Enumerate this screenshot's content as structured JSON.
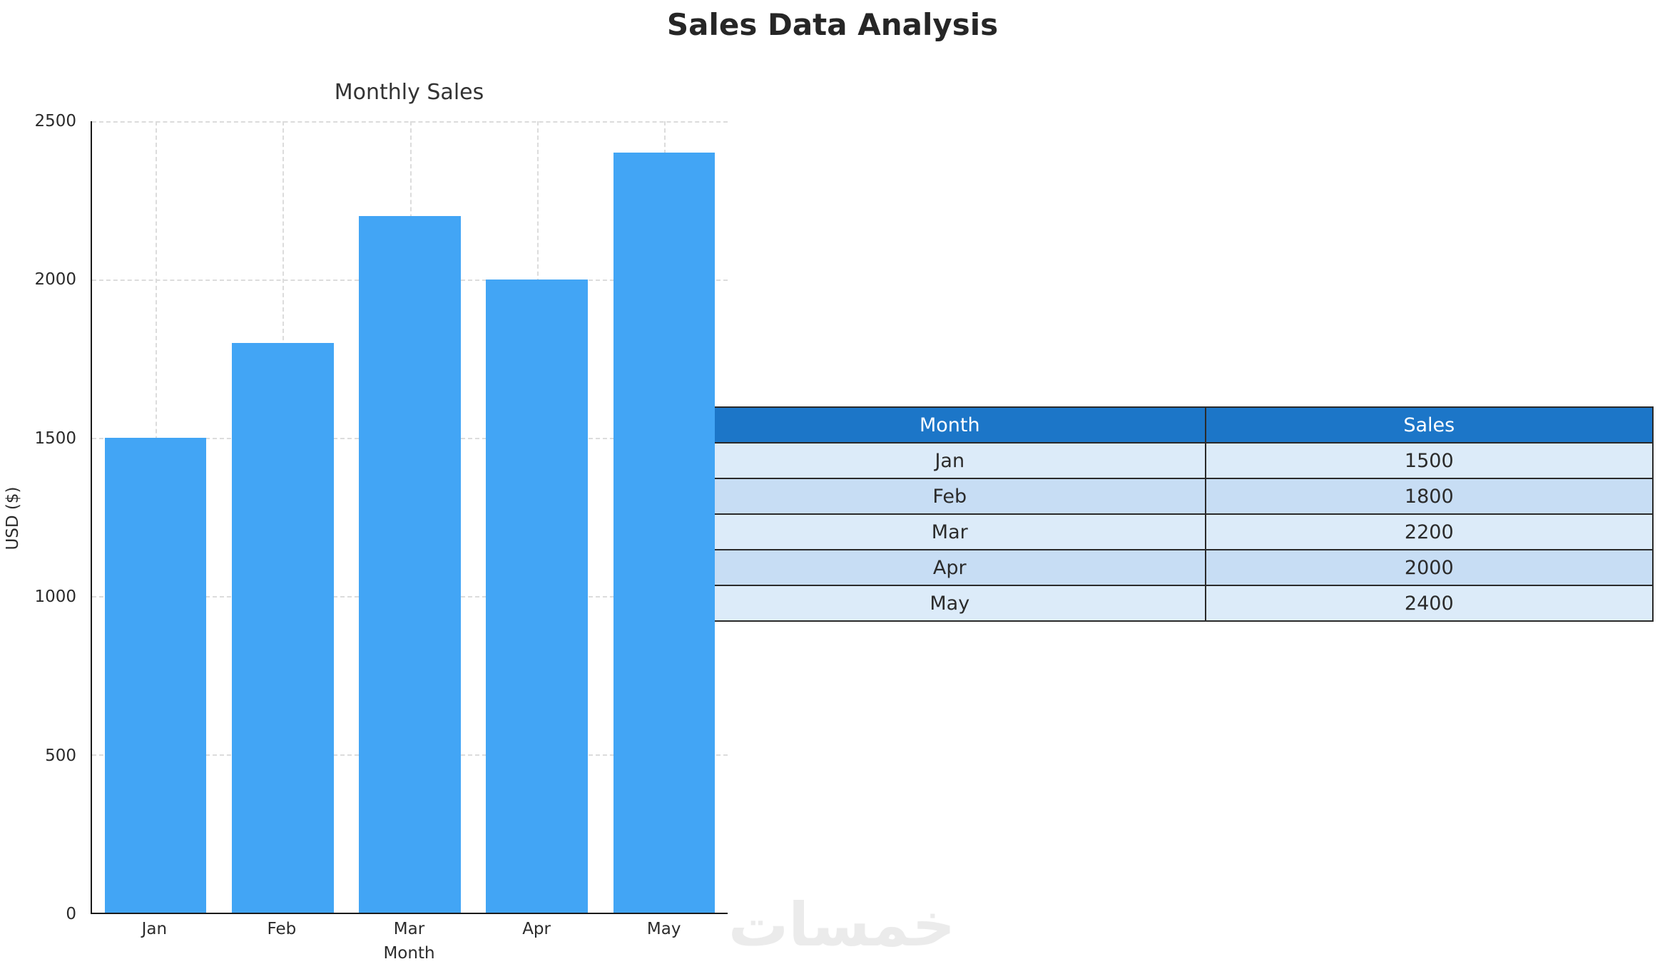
{
  "page": {
    "title": "Sales Data Analysis",
    "watermark": "خمسات"
  },
  "chart_data": {
    "type": "bar",
    "title": "Monthly Sales",
    "categories": [
      "Jan",
      "Feb",
      "Mar",
      "Apr",
      "May"
    ],
    "values": [
      1500,
      1800,
      2200,
      2000,
      2400
    ],
    "xlabel": "Month",
    "ylabel": "USD ($)",
    "ylim": [
      0,
      2500
    ],
    "yticks": [
      0,
      500,
      1000,
      1500,
      2000,
      2500
    ],
    "bar_color": "#42a5f5",
    "grid": true,
    "grid_style": "dashed",
    "legend": "none"
  },
  "table": {
    "headers": [
      "Month",
      "Sales"
    ],
    "rows": [
      [
        "Jan",
        "1500"
      ],
      [
        "Feb",
        "1800"
      ],
      [
        "Mar",
        "2200"
      ],
      [
        "Apr",
        "2000"
      ],
      [
        "May",
        "2400"
      ]
    ],
    "header_bg": "#1c76c8",
    "header_text_color": "#ffffff",
    "row_bg_odd": "#dcebf9",
    "row_bg_even": "#c7ddf4"
  }
}
